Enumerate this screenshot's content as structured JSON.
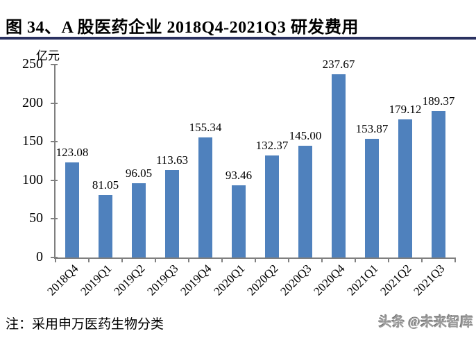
{
  "header": {
    "title": "图 34、A 股医药企业 2018Q4-2021Q3 研发费用"
  },
  "chart_data": {
    "type": "bar",
    "title": "图 34、A 股医药企业 2018Q4-2021Q3 研发费用",
    "ylabel": "亿元",
    "xlabel": "",
    "ylim": [
      0,
      250
    ],
    "yticks": [
      0,
      50,
      100,
      150,
      200,
      250
    ],
    "grid": false,
    "legend": null,
    "bar_color": "#4F81BD",
    "axis_color": "#7F7F7F",
    "categories": [
      "2018Q4",
      "2019Q1",
      "2019Q2",
      "2019Q3",
      "2019Q4",
      "2020Q1",
      "2020Q2",
      "2020Q3",
      "2020Q4",
      "2021Q1",
      "2021Q2",
      "2021Q3"
    ],
    "values": [
      123.08,
      81.05,
      96.05,
      113.63,
      155.34,
      93.46,
      132.37,
      145.0,
      237.67,
      153.87,
      179.12,
      189.37
    ],
    "value_labels": [
      "123.08",
      "81.05",
      "96.05",
      "113.63",
      "155.34",
      "93.46",
      "132.37",
      "145.00",
      "237.67",
      "153.87",
      "179.12",
      "189.37"
    ]
  },
  "footer": {
    "note": "注：采用申万医药生物分类",
    "watermark": "头条 @未来智库"
  },
  "colors": {
    "title_underline": "#2A3160",
    "bar": "#4F81BD",
    "axis": "#7F7F7F"
  }
}
